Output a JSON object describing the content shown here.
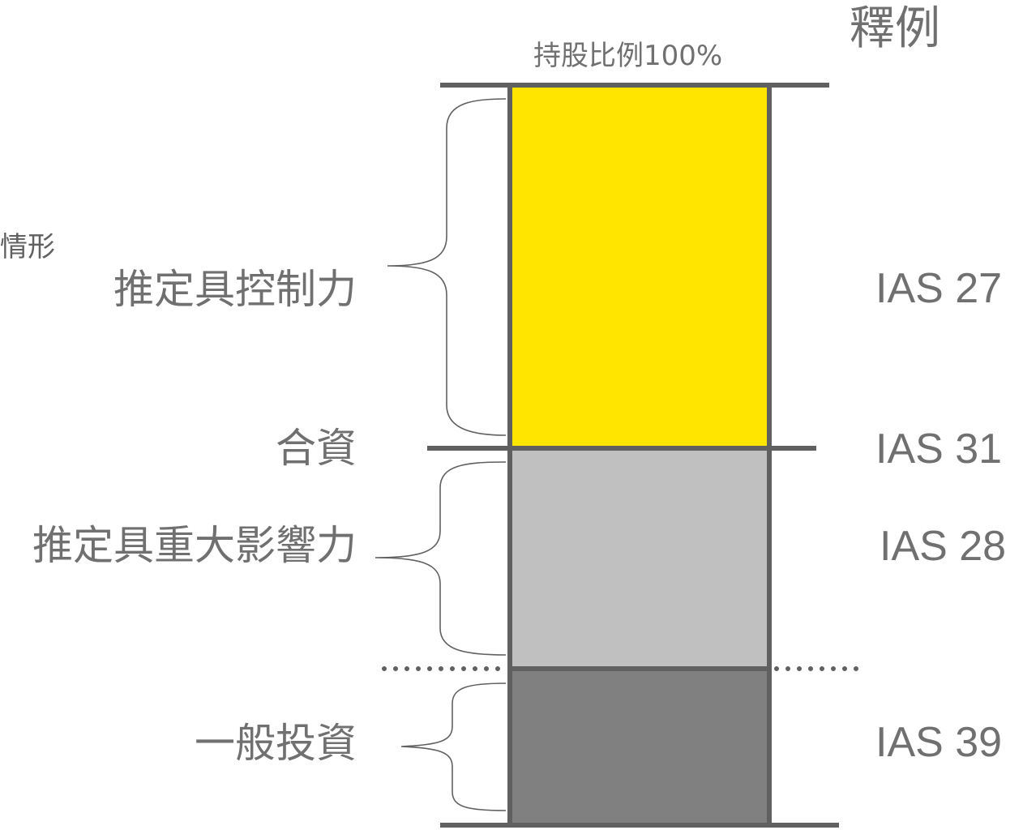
{
  "legend_title": "釋例",
  "top_label": "持股比例100%",
  "clipped_label": "情形",
  "bands": [
    {
      "left_label": "推定具控制力",
      "standard": "IAS 27",
      "color": "#FFE500"
    },
    {
      "left_label": "合資",
      "standard": "IAS 31"
    },
    {
      "left_label": "推定具重大影響力",
      "standard": "IAS 28",
      "color": "#C0C0C0"
    },
    {
      "left_label": "一般投資",
      "standard": "IAS 39",
      "color": "#808080"
    }
  ],
  "colors": {
    "frame": "#606060",
    "text": "#707070"
  }
}
